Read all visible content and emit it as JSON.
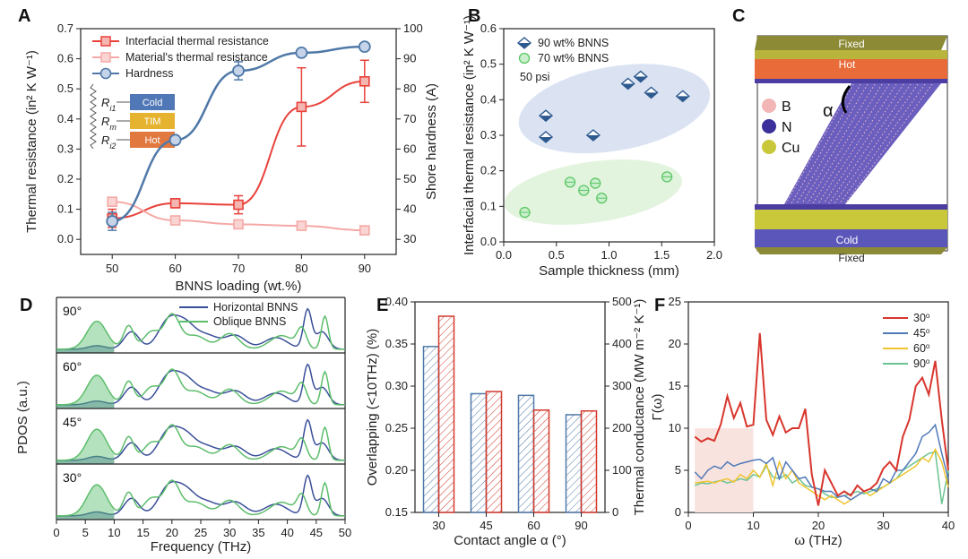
{
  "chart_data": [
    {
      "panel": "A",
      "type": "line",
      "xlabel": "BNNS loading (wt.%)",
      "ylabel": "Thermal resistance (in² K W⁻¹)",
      "y2label": "Shore hardness (A)",
      "x": [
        50,
        60,
        70,
        80,
        90
      ],
      "xlim": [
        45,
        95
      ],
      "ylim": [
        -0.05,
        0.7
      ],
      "y2lim": [
        25,
        100
      ],
      "xticks": [
        "50",
        "60",
        "70",
        "80",
        "90"
      ],
      "yticks": [
        "0.0",
        "0.1",
        "0.2",
        "0.3",
        "0.4",
        "0.5",
        "0.6",
        "0.7"
      ],
      "y2ticks": [
        "30",
        "40",
        "50",
        "60",
        "70",
        "80",
        "90",
        "100"
      ],
      "series": [
        {
          "name": "Interfacial thermal resistance",
          "axis": "left",
          "color": "#e8413a",
          "values": [
            0.07,
            0.12,
            0.115,
            0.44,
            0.525
          ],
          "errors": [
            0.03,
            0.015,
            0.03,
            0.13,
            0.07
          ]
        },
        {
          "name": "Material's thermal resistance",
          "axis": "left",
          "color": "#f4a9a6",
          "values": [
            0.125,
            0.063,
            0.05,
            0.045,
            0.03
          ]
        },
        {
          "name": "Hardness",
          "axis": "right",
          "color": "#5079a8",
          "values": [
            36,
            63,
            86,
            92,
            94
          ],
          "errors": [
            3,
            1,
            3,
            1,
            1
          ]
        }
      ],
      "inset": [
        "Cold",
        "TIM",
        "Hot"
      ],
      "inset_labels": [
        "R",
        "R",
        "R"
      ],
      "inset_subs": [
        "i1",
        "m",
        "i2"
      ]
    },
    {
      "panel": "B",
      "type": "scatter",
      "xlabel": "Sample thickness (mm)",
      "ylabel": "Interfacial thermal resistance (in² K W⁻¹)",
      "xlim": [
        0,
        2.0
      ],
      "ylim": [
        0,
        0.6
      ],
      "xticks": [
        "0.0",
        "0.5",
        "1.0",
        "1.5",
        "2.0"
      ],
      "yticks": [
        "0.0",
        "0.1",
        "0.2",
        "0.3",
        "0.4",
        "0.5",
        "0.6"
      ],
      "annotation": "50 psi",
      "series": [
        {
          "name": "90 wt% BNNS",
          "color": "#2e5a8f",
          "x": [
            0.4,
            0.4,
            0.85,
            1.18,
            1.3,
            1.4,
            1.7
          ],
          "y": [
            0.355,
            0.295,
            0.3,
            0.445,
            0.465,
            0.42,
            0.41
          ]
        },
        {
          "name": "70 wt% BNNS",
          "color": "#5cc766",
          "x": [
            0.2,
            0.63,
            0.76,
            0.87,
            0.93,
            1.55
          ],
          "y": [
            0.083,
            0.168,
            0.145,
            0.165,
            0.123,
            0.183
          ]
        }
      ]
    },
    {
      "panel": "C",
      "type": "diagram",
      "labels": {
        "top": "Fixed",
        "hot": "Hot",
        "cold": "Cold",
        "bottom": "Fixed",
        "angle": "α"
      },
      "legend": [
        "B",
        "N",
        "Cu"
      ],
      "legend_colors": [
        "#f2b6b6",
        "#3b2f9b",
        "#c9c73a"
      ]
    },
    {
      "panel": "D",
      "type": "area",
      "xlabel": "Frequency (THz)",
      "ylabel": "PDOS (a.u.)",
      "xlim": [
        0,
        50
      ],
      "xticks": [
        "0",
        "5",
        "10",
        "15",
        "20",
        "25",
        "30",
        "35",
        "40",
        "45",
        "50"
      ],
      "angles": [
        "90°",
        "60°",
        "45°",
        "30°"
      ],
      "series_names": [
        "Horizontal BNNS",
        "Oblique BNNS"
      ],
      "series_colors": [
        "#3a4f9a",
        "#5cbd6b"
      ],
      "overlap_range": [
        0,
        10
      ]
    },
    {
      "panel": "E",
      "type": "bar",
      "xlabel": "Contact angle α (°)",
      "ylabel": "Overlapping (<10THz) (%)",
      "y2label": "Thermal conductance (MW m⁻² K⁻¹)",
      "categories": [
        "30",
        "45",
        "60",
        "90"
      ],
      "ylim": [
        0.15,
        0.4
      ],
      "y2lim": [
        0,
        500
      ],
      "yticks": [
        "0.15",
        "0.20",
        "0.25",
        "0.30",
        "0.35",
        "0.40"
      ],
      "y2ticks": [
        "0",
        "100",
        "200",
        "300",
        "400",
        "500"
      ],
      "series": [
        {
          "name": "Overlapping",
          "axis": "left",
          "color": "#5079a8",
          "values": [
            0.347,
            0.291,
            0.289,
            0.266
          ]
        },
        {
          "name": "Thermal conductance",
          "axis": "right",
          "color": "#d23a2e",
          "values": [
            466,
            287,
            243,
            241
          ]
        }
      ]
    },
    {
      "panel": "F",
      "type": "line",
      "xlabel": "ω (THz)",
      "ylabel": "Γ(ω)",
      "xlim": [
        0,
        40
      ],
      "ylim": [
        0,
        25
      ],
      "xticks": [
        "0",
        "10",
        "20",
        "30",
        "40"
      ],
      "yticks": [
        "0",
        "5",
        "10",
        "15",
        "20",
        "25"
      ],
      "x": [
        1,
        2,
        3,
        4,
        5,
        6,
        7,
        8,
        9,
        10,
        11,
        12,
        13,
        14,
        15,
        16,
        17,
        18,
        19,
        20,
        21,
        22,
        23,
        24,
        25,
        26,
        27,
        28,
        29,
        30,
        31,
        32,
        33,
        34,
        35,
        36,
        37,
        38,
        39,
        40
      ],
      "series": [
        {
          "name": "30",
          "color": "#d8362d",
          "values": [
            9,
            8.4,
            8.8,
            8.5,
            10.5,
            13.8,
            11.2,
            13,
            10.2,
            10.4,
            21.3,
            11,
            9.2,
            11.4,
            9.5,
            10,
            10,
            12.3,
            4.5,
            0.8,
            5,
            3.5,
            2,
            2.5,
            2,
            3.2,
            2.5,
            2.8,
            3.5,
            5.2,
            6,
            5,
            9,
            11,
            15,
            16,
            14,
            18,
            11,
            5
          ]
        },
        {
          "name": "45",
          "color": "#5079b8",
          "values": [
            4.8,
            4,
            5,
            5.5,
            5.2,
            6,
            5.5,
            5.8,
            6,
            6.2,
            6.3,
            5.8,
            6.5,
            4,
            6,
            5,
            4,
            4.2,
            3,
            2.8,
            2.5,
            2.5,
            1.8,
            2,
            1.5,
            2,
            2.5,
            2.8,
            2.5,
            4,
            3.5,
            5,
            5,
            6,
            7,
            9,
            9.5,
            10.4,
            7,
            4
          ]
        },
        {
          "name": "60",
          "color": "#f0c431",
          "values": [
            3.5,
            3.6,
            3.7,
            3.5,
            3.8,
            4,
            3.6,
            4.5,
            4,
            5,
            4.2,
            5.8,
            3.2,
            6,
            4,
            5,
            3.5,
            3,
            2.5,
            2,
            1.5,
            2,
            1.5,
            1,
            1.5,
            2,
            2.5,
            2,
            2.5,
            3,
            3.5,
            4,
            4.5,
            5,
            5.5,
            6.5,
            6,
            7.5,
            6,
            3
          ]
        },
        {
          "name": "90",
          "color": "#6cc393",
          "values": [
            3.2,
            3.5,
            3.4,
            3.6,
            3.8,
            3.5,
            3.7,
            4,
            3.8,
            4.5,
            4.2,
            5.5,
            4.2,
            4,
            4.5,
            3.5,
            4,
            3.2,
            3,
            2.8,
            2.2,
            1.8,
            1.8,
            2,
            2.2,
            2.5,
            2.2,
            2.5,
            2.8,
            3,
            3.5,
            4,
            5,
            5.5,
            6,
            6.5,
            7,
            7.2,
            1,
            5
          ]
        }
      ],
      "shaded_range": [
        1,
        10
      ]
    }
  ]
}
